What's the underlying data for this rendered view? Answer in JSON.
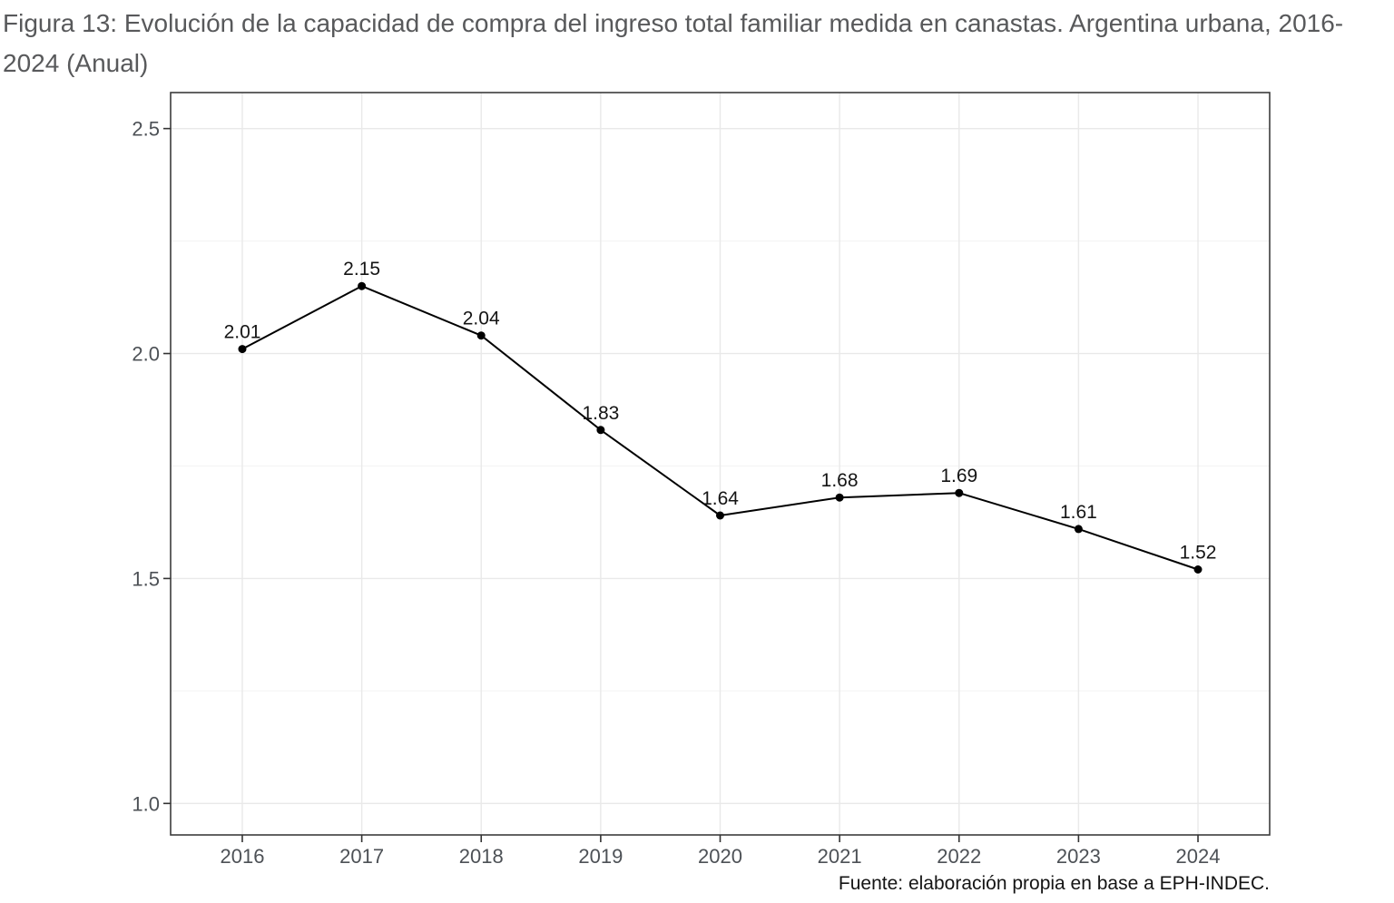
{
  "figure": {
    "title": "Figura 13: Evolución de la capacidad de compra del ingreso total familiar medida en canastas. Argentina urbana, 2016-2024 (Anual)",
    "source_note": "Fuente: elaboración propia en base a EPH-INDEC."
  },
  "chart_data": {
    "type": "line",
    "title": "Figura 13: Evolución de la capacidad de compra del ingreso total familiar medida en canastas. Argentina urbana, 2016-2024 (Anual)",
    "caption": "Fuente: elaboración propia en base a EPH-INDEC.",
    "x": [
      2016,
      2017,
      2018,
      2019,
      2020,
      2021,
      2022,
      2023,
      2024
    ],
    "xtick_labels": [
      "2016",
      "2017",
      "2018",
      "2019",
      "2020",
      "2021",
      "2022",
      "2023",
      "2024"
    ],
    "values": [
      2.01,
      2.15,
      2.04,
      1.83,
      1.64,
      1.68,
      1.69,
      1.61,
      1.52
    ],
    "point_labels": [
      "2.01",
      "2.15",
      "2.04",
      "1.83",
      "1.64",
      "1.68",
      "1.69",
      "1.61",
      "1.52"
    ],
    "xlabel": "",
    "ylabel": "",
    "xlim": [
      2015.4,
      2024.6
    ],
    "ylim": [
      0.93,
      2.58
    ],
    "yticks": [
      1.0,
      1.5,
      2.0,
      2.5
    ],
    "ytick_labels": [
      "1.0",
      "1.5",
      "2.0",
      "2.5"
    ],
    "y_minor_gridlines": [
      1.25,
      1.75,
      2.25
    ],
    "grid": "horizontal major + minor, vertical major at each year, light gray on white panel",
    "legend": "none",
    "marker": "filled-circle",
    "colors": {
      "line": "#000000",
      "point": "#000000",
      "point_label": "#141414",
      "axis_text": "#4d5156",
      "panel_border": "#3c3c3c",
      "tick": "#333333",
      "grid_major": "#e9e9e9",
      "grid_minor": "#f4f4f4",
      "background": "#ffffff",
      "title": "#58595b",
      "caption": "#141414"
    }
  }
}
